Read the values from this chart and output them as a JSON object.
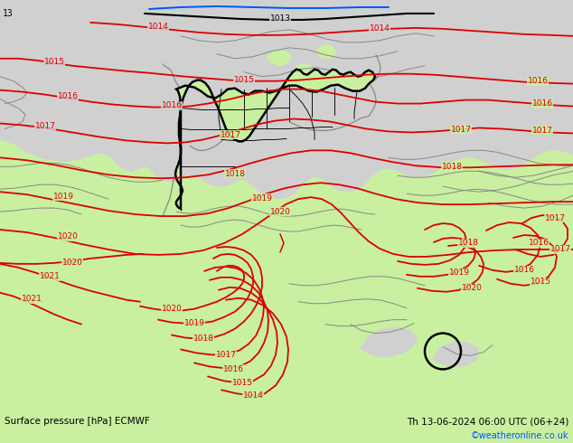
{
  "title_left": "Surface pressure [hPa] ECMWF",
  "title_right": "Th 13-06-2024 06:00 UTC (06+24)",
  "credit": "©weatheronline.co.uk",
  "green": "#c8f0a0",
  "gray": "#d0d0d0",
  "red": "#dd0000",
  "black": "#000000",
  "blue": "#0055ff",
  "gray_line": "#888888",
  "figsize": [
    6.34,
    4.9
  ],
  "dpi": 100
}
